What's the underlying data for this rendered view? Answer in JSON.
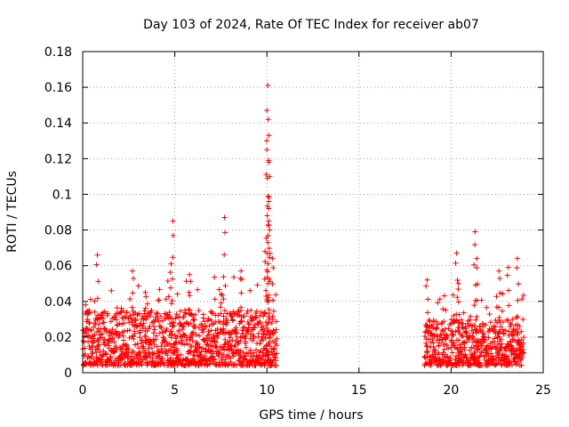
{
  "chart_data": {
    "type": "scatter",
    "title": "Day 103 of 2024, Rate Of TEC Index for receiver ab07",
    "xlabel": "GPS time / hours",
    "ylabel": "ROTI / TECUs",
    "xlim": [
      0,
      25
    ],
    "ylim": [
      0,
      0.18
    ],
    "x_ticks": [
      0,
      5,
      10,
      15,
      20,
      25
    ],
    "x_tick_labels": [
      "0",
      "5",
      "10",
      "15",
      "20",
      "25"
    ],
    "y_ticks": [
      0,
      0.02,
      0.04,
      0.06,
      0.08,
      0.1,
      0.12,
      0.14,
      0.16,
      0.18
    ],
    "y_tick_labels": [
      "0",
      "0.02",
      "0.04",
      "0.06",
      "0.08",
      "0.1",
      "0.12",
      "0.14",
      "0.16",
      "0.18"
    ],
    "grid": true,
    "marker": "plus",
    "color": "#ff0000",
    "series": [
      {
        "name": "ROTI",
        "segments": [
          {
            "x_start": 0.0,
            "x_end": 10.55,
            "typical_max": 0.035,
            "floor": 0.004
          },
          {
            "x_start": 18.55,
            "x_end": 23.95,
            "typical_max": 0.03,
            "floor": 0.004
          }
        ],
        "peaks": [
          {
            "x": 0.8,
            "y": 0.066
          },
          {
            "x": 2.7,
            "y": 0.057
          },
          {
            "x": 3.4,
            "y": 0.045
          },
          {
            "x": 4.8,
            "y": 0.061
          },
          {
            "x": 4.9,
            "y": 0.085
          },
          {
            "x": 5.8,
            "y": 0.055
          },
          {
            "x": 7.7,
            "y": 0.087
          },
          {
            "x": 8.6,
            "y": 0.057
          },
          {
            "x": 9.9,
            "y": 0.068
          },
          {
            "x": 10.05,
            "y": 0.161
          },
          {
            "x": 10.0,
            "y": 0.147
          },
          {
            "x": 10.1,
            "y": 0.133
          },
          {
            "x": 10.0,
            "y": 0.125
          },
          {
            "x": 10.15,
            "y": 0.11
          },
          {
            "x": 10.1,
            "y": 0.092
          },
          {
            "x": 10.1,
            "y": 0.085
          },
          {
            "x": 10.3,
            "y": 0.064
          },
          {
            "x": 18.7,
            "y": 0.052
          },
          {
            "x": 20.3,
            "y": 0.067
          },
          {
            "x": 20.4,
            "y": 0.05
          },
          {
            "x": 21.3,
            "y": 0.079
          },
          {
            "x": 21.4,
            "y": 0.064
          },
          {
            "x": 22.6,
            "y": 0.057
          },
          {
            "x": 23.1,
            "y": 0.059
          },
          {
            "x": 23.6,
            "y": 0.064
          }
        ]
      }
    ]
  }
}
